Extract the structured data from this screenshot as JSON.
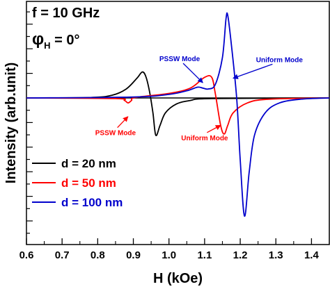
{
  "chart_data": {
    "type": "line",
    "xlabel": "H (kOe)",
    "ylabel": "Intensity (arb.unit)",
    "xlim": [
      0.6,
      1.45
    ],
    "ylim": [
      -1.0,
      1.0
    ],
    "x_ticks": [
      "0.6",
      "0.7",
      "0.8",
      "0.9",
      "1.0",
      "1.1",
      "1.2",
      "1.3",
      "1.4"
    ],
    "grid": false,
    "legend_position": "lower-left",
    "params": [
      {
        "name": "f",
        "text": "f = 10 GHz"
      },
      {
        "name": "phi",
        "symbol": "φ",
        "sub": "H",
        "text": " = 0°"
      }
    ],
    "series": [
      {
        "name": "d =  20 nm",
        "color": "#000000",
        "points": [
          [
            0.6,
            0
          ],
          [
            0.78,
            0.005
          ],
          [
            0.84,
            0.03
          ],
          [
            0.88,
            0.1
          ],
          [
            0.91,
            0.22
          ],
          [
            0.925,
            0.29
          ],
          [
            0.935,
            0.24
          ],
          [
            0.945,
            0.08
          ],
          [
            0.955,
            -0.12
          ],
          [
            0.963,
            -0.3
          ],
          [
            0.975,
            -0.22
          ],
          [
            0.99,
            -0.12
          ],
          [
            1.02,
            -0.05
          ],
          [
            1.06,
            -0.02
          ],
          [
            1.12,
            -0.005
          ],
          [
            1.45,
            0
          ]
        ]
      },
      {
        "name": "d =  50 nm",
        "color": "#ff0000",
        "points": [
          [
            0.6,
            0
          ],
          [
            0.85,
            -0.005
          ],
          [
            0.875,
            -0.02
          ],
          [
            0.885,
            -0.04
          ],
          [
            0.895,
            -0.02
          ],
          [
            0.905,
            0.005
          ],
          [
            1.0,
            0.05
          ],
          [
            1.06,
            0.11
          ],
          [
            1.1,
            0.23
          ],
          [
            1.12,
            0.23
          ],
          [
            1.13,
            0.05
          ],
          [
            1.145,
            -0.22
          ],
          [
            1.155,
            -0.29
          ],
          [
            1.165,
            -0.22
          ],
          [
            1.18,
            -0.12
          ],
          [
            1.22,
            -0.04
          ],
          [
            1.28,
            -0.01
          ],
          [
            1.45,
            0
          ]
        ]
      },
      {
        "name": "d = 100 nm",
        "color": "#0000cc",
        "points": [
          [
            0.6,
            0
          ],
          [
            0.9,
            0.01
          ],
          [
            1.0,
            0.04
          ],
          [
            1.05,
            0.08
          ],
          [
            1.08,
            0.12
          ],
          [
            1.095,
            0.11
          ],
          [
            1.11,
            0.1
          ],
          [
            1.13,
            0.15
          ],
          [
            1.15,
            0.45
          ],
          [
            1.16,
            0.88
          ],
          [
            1.165,
            0.92
          ],
          [
            1.175,
            0.6
          ],
          [
            1.19,
            0
          ],
          [
            1.2,
            -0.5
          ],
          [
            1.212,
            -0.95
          ],
          [
            1.225,
            -0.6
          ],
          [
            1.24,
            -0.3
          ],
          [
            1.27,
            -0.12
          ],
          [
            1.31,
            -0.04
          ],
          [
            1.37,
            -0.01
          ],
          [
            1.45,
            0
          ]
        ]
      }
    ],
    "annotations": [
      {
        "text": "PSSW Mode",
        "color": "#0000cc",
        "x": 1.03,
        "y": 0.41,
        "arrow_to": [
          1.095,
          0.17
        ]
      },
      {
        "text": "Uniform Mode",
        "color": "#0000cc",
        "x": 1.31,
        "y": 0.4,
        "arrow_to": [
          1.18,
          0.22
        ]
      },
      {
        "text": "PSSW Mode",
        "color": "#ff0000",
        "x": 0.85,
        "y": -0.3,
        "arrow_to": [
          0.885,
          -0.15
        ]
      },
      {
        "text": "Uniform Mode",
        "color": "#ff0000",
        "x": 1.1,
        "y": -0.34,
        "arrow_to": [
          1.145,
          -0.22
        ]
      }
    ]
  }
}
